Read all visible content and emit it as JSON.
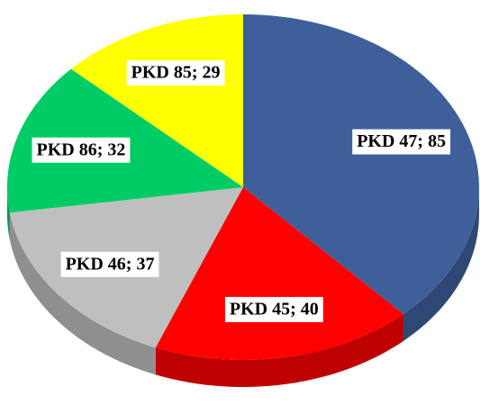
{
  "chart_data": {
    "type": "pie",
    "categories": [
      "PKD 47",
      "PKD 45",
      "PKD 46",
      "PKD 86",
      "PKD 85"
    ],
    "values": [
      85,
      40,
      37,
      32,
      29
    ],
    "value_labels": [
      "PKD 47; 85",
      "PKD 45; 40",
      "PKD 46; 37",
      "PKD 86; 32",
      "PKD 85; 29"
    ],
    "colors": [
      "#3f5f9b",
      "#ff0000",
      "#bfbfbf",
      "#00cc66",
      "#ffff00"
    ]
  }
}
